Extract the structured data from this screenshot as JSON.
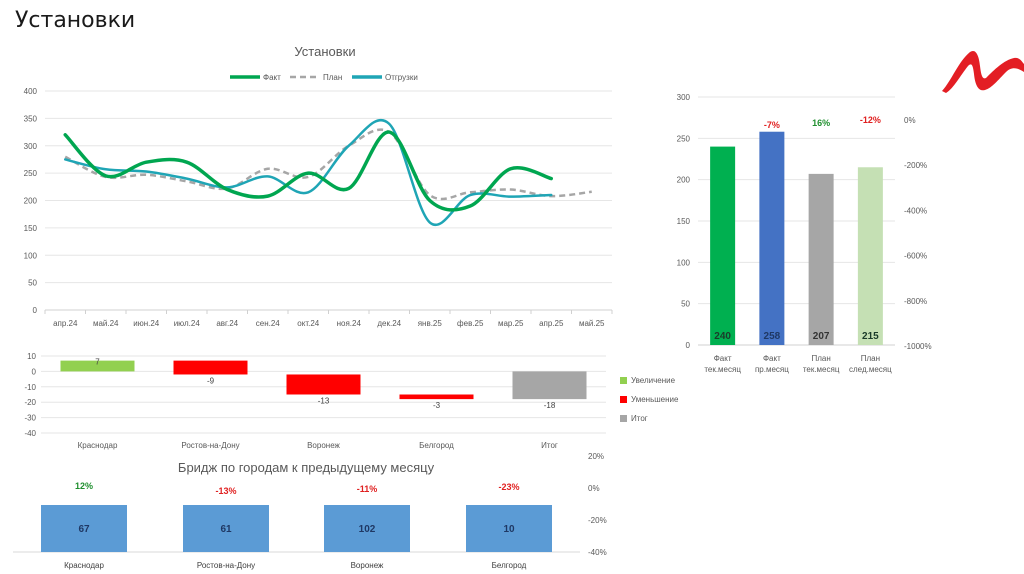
{
  "page": {
    "title": "Установки"
  },
  "logo": {
    "color": "#e31e24",
    "name": "brand-logo"
  },
  "chart_data": [
    {
      "id": "line",
      "type": "line",
      "title": "Установки",
      "categories": [
        "апр.24",
        "май.24",
        "июн.24",
        "июл.24",
        "авг.24",
        "сен.24",
        "окт.24",
        "ноя.24",
        "дек.24",
        "янв.25",
        "фев.25",
        "мар.25",
        "апр.25",
        "май.25"
      ],
      "yticks": [
        0,
        50,
        100,
        150,
        200,
        250,
        300,
        350,
        400
      ],
      "ylim": [
        0,
        400
      ],
      "grid": true,
      "legend_position": "top",
      "series": [
        {
          "name": "Факт",
          "color": "#00a650",
          "style": "solid",
          "values": [
            320,
            245,
            270,
            270,
            220,
            208,
            250,
            222,
            325,
            200,
            190,
            258,
            240,
            null
          ]
        },
        {
          "name": "План",
          "color": "#a6a6a6",
          "style": "dashed",
          "values": [
            280,
            243,
            247,
            235,
            222,
            258,
            243,
            300,
            325,
            210,
            215,
            220,
            208,
            216
          ]
        },
        {
          "name": "Отгрузки",
          "color": "#1fa5b5",
          "style": "solid",
          "values": [
            275,
            257,
            253,
            240,
            224,
            244,
            215,
            300,
            340,
            160,
            210,
            207,
            210,
            null
          ]
        }
      ]
    },
    {
      "id": "month",
      "type": "bar",
      "categories": [
        [
          "Факт",
          "тек.месяц"
        ],
        [
          "Факт",
          "пр.месяц"
        ],
        [
          "План",
          "тек.месяц"
        ],
        [
          "План",
          "след.месяц"
        ]
      ],
      "values": [
        240,
        258,
        207,
        215
      ],
      "data_labels": [
        "240",
        "258",
        "207",
        "215"
      ],
      "colors": [
        "#00b050",
        "#4472c4",
        "#a6a6a6",
        "#c5e0b4"
      ],
      "label_colors": [
        "#1a3b2a",
        "#1f3864",
        "#333333",
        "#1a3b2a"
      ],
      "pct_labels": [
        null,
        "-7%",
        "16%",
        "-12%"
      ],
      "pct_colors": [
        null,
        "#e02020",
        "#1f8f2e",
        "#e02020"
      ],
      "yticks": [
        0,
        50,
        100,
        150,
        200,
        250,
        300
      ],
      "ylim": [
        0,
        300
      ],
      "y2ticks": [
        "0%",
        "-200%",
        "-400%",
        "-600%",
        "-800%",
        "-1000%"
      ],
      "grid": true
    },
    {
      "id": "waterfall",
      "type": "bar",
      "subtype": "waterfall",
      "categories": [
        "Краснодар",
        "Ростов-на-Дону",
        "Воронеж",
        "Белгород",
        "Итог"
      ],
      "values": [
        7,
        -9,
        -13,
        -3,
        -18
      ],
      "data_labels": [
        "7",
        "-9",
        "-13",
        "-3",
        "-18"
      ],
      "kinds": [
        "up",
        "down",
        "down",
        "down",
        "total"
      ],
      "yticks": [
        10,
        0,
        -10,
        -20,
        -30,
        -40
      ],
      "ylim": [
        -40,
        10
      ],
      "grid": true,
      "legend_position": "right",
      "legend": [
        {
          "key": "up",
          "label": "Увеличение",
          "color": "#92d050"
        },
        {
          "key": "down",
          "label": "Уменьшение",
          "color": "#ff0000"
        },
        {
          "key": "total",
          "label": "Итог",
          "color": "#a6a6a6"
        }
      ]
    },
    {
      "id": "cities",
      "type": "bar",
      "title": "Бридж по городам к предыдущему месяцу",
      "categories": [
        "Краснодар",
        "Ростов-на-Дону",
        "Воронеж",
        "Белгород"
      ],
      "values": [
        67,
        61,
        102,
        10
      ],
      "data_labels": [
        "67",
        "61",
        "102",
        "10"
      ],
      "bar_color": "#5b9bd5",
      "pct_labels": [
        "12%",
        "-13%",
        "-11%",
        "-23%"
      ],
      "pct_colors": [
        "#1f8f2e",
        "#e02020",
        "#e02020",
        "#e02020"
      ],
      "y2ticks": [
        "20%",
        "0%",
        "-20%",
        "-40%"
      ]
    }
  ]
}
